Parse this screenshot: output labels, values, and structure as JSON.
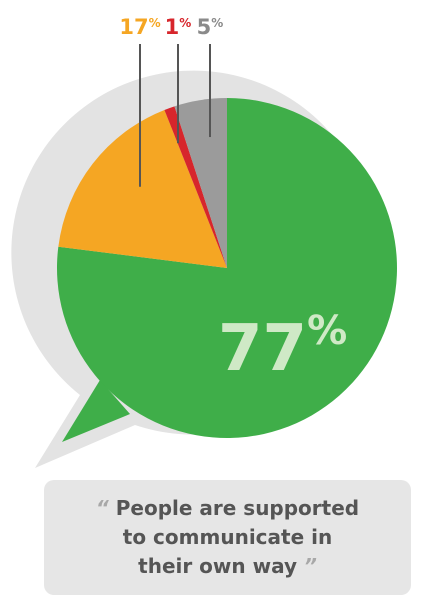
{
  "chart_data": {
    "type": "pie",
    "slices": [
      {
        "label": "77",
        "value": 77,
        "color": "#3fae49"
      },
      {
        "label": "17",
        "value": 17,
        "color": "#f5a623"
      },
      {
        "label": "1",
        "value": 1,
        "color": "#d7262c"
      },
      {
        "label": "5",
        "value": 5,
        "color": "#9b9b9b"
      }
    ],
    "percent_sign": "%"
  },
  "caption": {
    "open_quote": "“",
    "text": "People are supported to communicate in their own way",
    "close_quote": "”"
  },
  "colors": {
    "bubble_outline": "#e3e3e3",
    "leader_line": "#555555"
  }
}
